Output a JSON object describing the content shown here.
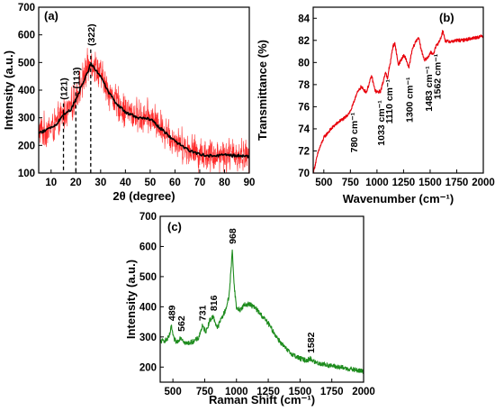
{
  "colors": {
    "xrd_raw": "#ff2a2a",
    "xrd_smooth": "#000000",
    "ftir": "#e8000b",
    "raman": "#1e8c1e",
    "ref_line": "#000000"
  },
  "chart_data": [
    {
      "id": "a",
      "type": "line",
      "panel_label": "(a)",
      "xlabel": "2θ (degree)",
      "ylabel": "Intensity (a.u.)",
      "xlim": [
        5,
        90
      ],
      "ylim": [
        100,
        700
      ],
      "xticks": [
        10,
        20,
        30,
        40,
        50,
        60,
        70,
        80,
        90
      ],
      "yticks": [
        100,
        200,
        300,
        400,
        500,
        600,
        700
      ],
      "series": [
        {
          "style": "noisy",
          "x": [
            5,
            8,
            12,
            15,
            18,
            21,
            23,
            25,
            26,
            28,
            30,
            33,
            36,
            40,
            45,
            50,
            55,
            60,
            65,
            70,
            75,
            80,
            85,
            90
          ],
          "values": [
            250,
            255,
            275,
            315,
            335,
            400,
            440,
            485,
            510,
            485,
            455,
            400,
            360,
            325,
            305,
            300,
            260,
            220,
            190,
            170,
            165,
            168,
            165,
            160
          ],
          "noise": 50
        },
        {
          "style": "smooth",
          "x": [
            5,
            8,
            12,
            15,
            18,
            21,
            23,
            25,
            26,
            28,
            30,
            33,
            36,
            40,
            45,
            50,
            55,
            60,
            65,
            70,
            75,
            80,
            85,
            90
          ],
          "values": [
            245,
            255,
            275,
            312,
            330,
            385,
            430,
            470,
            495,
            475,
            450,
            395,
            355,
            320,
            300,
            295,
            255,
            215,
            185,
            168,
            162,
            165,
            163,
            160
          ]
        }
      ],
      "annotations": [
        {
          "label": "(121)",
          "x": 15,
          "y_top": 365
        },
        {
          "label": "(113)",
          "x": 20,
          "y_top": 405
        },
        {
          "label": "(322)",
          "x": 26,
          "y_top": 560
        }
      ]
    },
    {
      "id": "b",
      "type": "line",
      "panel_label": "(b)",
      "xlabel": "Wavenumber (cm⁻¹)",
      "ylabel": "Transmittance (%)",
      "xlim": [
        400,
        2000
      ],
      "ylim": [
        70,
        85
      ],
      "xticks": [
        500,
        750,
        1000,
        1250,
        1500,
        1750,
        2000
      ],
      "yticks": [
        70,
        72,
        74,
        76,
        78,
        80,
        82,
        84
      ],
      "series": [
        {
          "x": [
            400,
            420,
            450,
            500,
            550,
            600,
            650,
            700,
            750,
            780,
            800,
            850,
            900,
            950,
            980,
            1000,
            1033,
            1060,
            1080,
            1100,
            1110,
            1130,
            1150,
            1170,
            1200,
            1250,
            1270,
            1300,
            1330,
            1360,
            1390,
            1420,
            1450,
            1483,
            1500,
            1530,
            1562,
            1580,
            1600,
            1620,
            1640,
            1660,
            1700,
            1750,
            1800,
            1850,
            1900,
            1950,
            2000
          ],
          "values": [
            70.0,
            70.8,
            72.0,
            73.2,
            73.8,
            74.3,
            74.7,
            75.0,
            75.6,
            76.3,
            77.0,
            77.8,
            77.3,
            78.8,
            77.5,
            77.3,
            77.4,
            78.3,
            79.2,
            78.4,
            79.3,
            80.2,
            81.5,
            81.7,
            79.8,
            80.6,
            80.4,
            79.5,
            81.1,
            81.8,
            82.3,
            81.0,
            80.2,
            80.5,
            80.9,
            80.8,
            81.6,
            81.8,
            82.2,
            82.9,
            82.0,
            81.9,
            81.9,
            82.0,
            82.0,
            82.1,
            82.2,
            82.3,
            82.4
          ],
          "noise": 0.15
        }
      ],
      "annotations": [
        {
          "label": "780 cm⁻¹",
          "x": 780
        },
        {
          "label": "1033 cm⁻¹",
          "x": 1033
        },
        {
          "label": "1110 cm⁻¹",
          "x": 1110
        },
        {
          "label": "1300 cm⁻¹",
          "x": 1300
        },
        {
          "label": "1483 cm⁻¹",
          "x": 1483
        },
        {
          "label": "1562 cm⁻¹",
          "x": 1562
        }
      ]
    },
    {
      "id": "c",
      "type": "line",
      "panel_label": "(c)",
      "xlabel": "Raman Shift (cm⁻¹)",
      "ylabel": "Intensity (a.u.)",
      "xlim": [
        400,
        2000
      ],
      "ylim": [
        150,
        700
      ],
      "xticks": [
        500,
        750,
        1000,
        1250,
        1500,
        1750,
        2000
      ],
      "yticks": [
        200,
        300,
        400,
        500,
        600,
        700
      ],
      "series": [
        {
          "x": [
            400,
            450,
            470,
            489,
            505,
            530,
            562,
            600,
            650,
            700,
            731,
            760,
            790,
            816,
            850,
            880,
            910,
            940,
            955,
            968,
            980,
            1000,
            1030,
            1060,
            1100,
            1150,
            1200,
            1250,
            1300,
            1350,
            1400,
            1450,
            1500,
            1550,
            1582,
            1620,
            1700,
            1800,
            1900,
            2000
          ],
          "values": [
            285,
            290,
            300,
            335,
            295,
            282,
            300,
            278,
            283,
            295,
            335,
            318,
            355,
            368,
            330,
            360,
            385,
            430,
            510,
            590,
            480,
            395,
            390,
            405,
            410,
            395,
            370,
            345,
            310,
            280,
            255,
            240,
            228,
            222,
            228,
            215,
            208,
            200,
            193,
            185
          ],
          "noise": 8
        }
      ],
      "annotations": [
        {
          "label": "489",
          "x": 489
        },
        {
          "label": "562",
          "x": 562
        },
        {
          "label": "731",
          "x": 731
        },
        {
          "label": "816",
          "x": 816
        },
        {
          "label": "968",
          "x": 968
        },
        {
          "label": "1582",
          "x": 1582
        }
      ]
    }
  ]
}
